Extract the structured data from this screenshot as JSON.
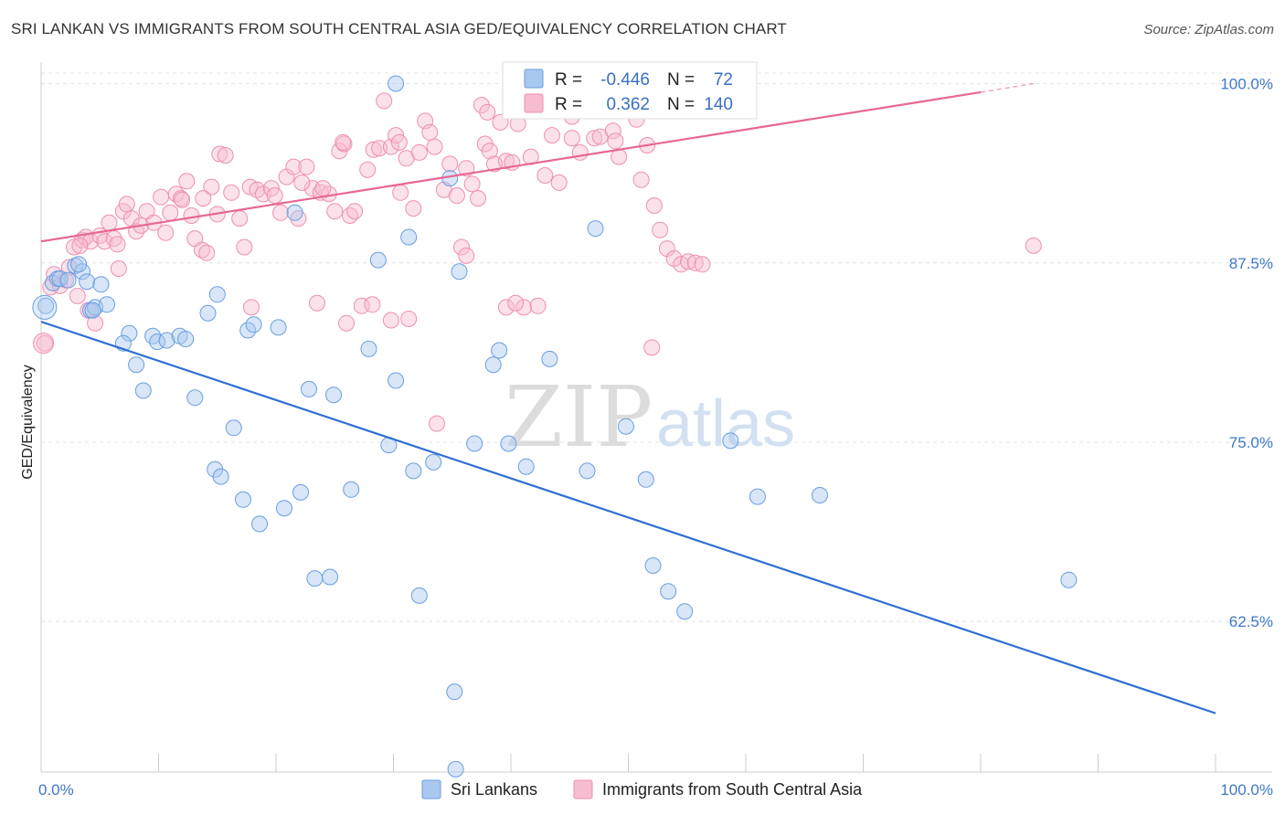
{
  "title": "SRI LANKAN VS IMMIGRANTS FROM SOUTH CENTRAL ASIA GED/EQUIVALENCY CORRELATION CHART",
  "source": "Source: ZipAtlas.com",
  "watermark": {
    "zip": "ZIP",
    "atlas": "atlas"
  },
  "legend_top": {
    "r_label": "R =",
    "n_label": "N =",
    "rows": [
      {
        "r": "-0.446",
        "n": "72",
        "color": "#a9c8ef"
      },
      {
        "r": "0.362",
        "n": "140",
        "color": "#f6bcd0"
      }
    ]
  },
  "chart_data": {
    "type": "scatter",
    "ylabel": "GED/Equivalency",
    "xlim": [
      0,
      100
    ],
    "ylim": [
      52,
      101.5
    ],
    "x_ticks": [
      "0.0%",
      "100.0%"
    ],
    "y_ticks": [
      {
        "value": 100,
        "label": "100.0%"
      },
      {
        "value": 87.5,
        "label": "87.5%"
      },
      {
        "value": 75,
        "label": "75.0%"
      },
      {
        "value": 62.5,
        "label": "62.5%"
      }
    ],
    "grid": true,
    "series": [
      {
        "name": "Sri Lankans",
        "color": "#a9c8ef",
        "stroke": "#6a9ee0",
        "line_color": "#2f6fd0",
        "trend": {
          "x0": 0,
          "y0": 83.4,
          "x1": 100,
          "y1": 56.1
        },
        "points": [
          [
            0.4,
            84.5
          ],
          [
            1.0,
            86.1
          ],
          [
            1.4,
            86.4
          ],
          [
            1.6,
            86.4
          ],
          [
            2.3,
            86.3
          ],
          [
            2.9,
            87.3
          ],
          [
            3.5,
            86.9
          ],
          [
            3.9,
            86.2
          ],
          [
            5.1,
            86.0
          ],
          [
            4.2,
            84.2
          ],
          [
            4.6,
            84.4
          ],
          [
            4.4,
            84.2
          ],
          [
            5.6,
            84.6
          ],
          [
            7.5,
            82.6
          ],
          [
            8.1,
            80.4
          ],
          [
            8.7,
            78.6
          ],
          [
            9.5,
            82.4
          ],
          [
            9.9,
            82.0
          ],
          [
            10.7,
            82.1
          ],
          [
            11.8,
            82.4
          ],
          [
            12.3,
            82.2
          ],
          [
            13.1,
            78.1
          ],
          [
            14.2,
            84.0
          ],
          [
            14.8,
            73.1
          ],
          [
            15.3,
            72.6
          ],
          [
            16.4,
            76.0
          ],
          [
            17.6,
            82.8
          ],
          [
            18.1,
            83.2
          ],
          [
            18.6,
            69.3
          ],
          [
            17.2,
            71.0
          ],
          [
            20.2,
            83.0
          ],
          [
            20.7,
            70.4
          ],
          [
            22.1,
            71.5
          ],
          [
            21.6,
            91.0
          ],
          [
            22.8,
            78.7
          ],
          [
            23.3,
            65.5
          ],
          [
            24.6,
            65.6
          ],
          [
            24.9,
            78.3
          ],
          [
            26.4,
            71.7
          ],
          [
            27.9,
            81.5
          ],
          [
            28.7,
            87.7
          ],
          [
            29.6,
            74.8
          ],
          [
            30.2,
            79.3
          ],
          [
            31.3,
            89.3
          ],
          [
            31.7,
            73.0
          ],
          [
            32.2,
            64.3
          ],
          [
            33.4,
            73.6
          ],
          [
            34.8,
            93.4
          ],
          [
            35.6,
            86.9
          ],
          [
            35.2,
            57.6
          ],
          [
            35.3,
            52.2
          ],
          [
            36.9,
            74.9
          ],
          [
            38.5,
            80.4
          ],
          [
            39.0,
            81.4
          ],
          [
            39.8,
            74.9
          ],
          [
            41.3,
            73.3
          ],
          [
            43.3,
            80.8
          ],
          [
            46.5,
            73.0
          ],
          [
            47.2,
            89.9
          ],
          [
            49.8,
            76.1
          ],
          [
            51.5,
            72.4
          ],
          [
            52.1,
            66.4
          ],
          [
            53.4,
            64.6
          ],
          [
            54.8,
            63.2
          ],
          [
            58.7,
            75.1
          ],
          [
            61.0,
            71.2
          ],
          [
            66.3,
            71.3
          ],
          [
            30.2,
            100.0
          ],
          [
            7.0,
            81.9
          ],
          [
            15.0,
            85.3
          ],
          [
            3.2,
            87.4
          ],
          [
            87.5,
            65.4
          ]
        ]
      },
      {
        "name": "Immigrants from South Central Asia",
        "color": "#f6bcd0",
        "stroke": "#ee8fb2",
        "line_color": "#e76793",
        "trend": {
          "x0": 0,
          "y0": 89.0,
          "x1": 80,
          "y1": 99.4
        },
        "trend_dash": {
          "x0": 80,
          "y0": 99.4,
          "x1": 84.5,
          "y1": 100.0
        },
        "points": [
          [
            0.3,
            81.9
          ],
          [
            0.8,
            85.8
          ],
          [
            1.1,
            86.7
          ],
          [
            1.6,
            85.9
          ],
          [
            2.1,
            86.3
          ],
          [
            2.4,
            87.2
          ],
          [
            2.8,
            88.6
          ],
          [
            3.1,
            85.2
          ],
          [
            3.5,
            89.1
          ],
          [
            3.8,
            89.3
          ],
          [
            4.2,
            89.0
          ],
          [
            4.6,
            83.3
          ],
          [
            5.0,
            89.4
          ],
          [
            5.4,
            89.0
          ],
          [
            5.8,
            90.3
          ],
          [
            6.2,
            89.2
          ],
          [
            6.6,
            87.1
          ],
          [
            7.0,
            91.1
          ],
          [
            7.3,
            91.6
          ],
          [
            7.7,
            90.6
          ],
          [
            8.1,
            89.7
          ],
          [
            8.5,
            90.1
          ],
          [
            9.0,
            91.1
          ],
          [
            9.6,
            90.3
          ],
          [
            10.2,
            92.1
          ],
          [
            10.6,
            89.6
          ],
          [
            11.0,
            91.0
          ],
          [
            11.5,
            92.3
          ],
          [
            11.9,
            92.0
          ],
          [
            12.4,
            93.2
          ],
          [
            12.8,
            90.8
          ],
          [
            13.1,
            89.2
          ],
          [
            13.7,
            88.4
          ],
          [
            14.1,
            88.2
          ],
          [
            14.5,
            92.8
          ],
          [
            15.0,
            90.9
          ],
          [
            15.2,
            95.1
          ],
          [
            15.7,
            95.0
          ],
          [
            16.2,
            92.4
          ],
          [
            16.9,
            90.6
          ],
          [
            17.3,
            88.6
          ],
          [
            17.8,
            92.8
          ],
          [
            18.4,
            92.6
          ],
          [
            18.9,
            92.3
          ],
          [
            19.6,
            92.7
          ],
          [
            19.9,
            92.2
          ],
          [
            20.4,
            91.0
          ],
          [
            20.9,
            93.5
          ],
          [
            21.5,
            94.2
          ],
          [
            21.9,
            90.6
          ],
          [
            22.6,
            94.2
          ],
          [
            23.1,
            92.7
          ],
          [
            23.5,
            84.7
          ],
          [
            23.8,
            92.4
          ],
          [
            24.5,
            92.3
          ],
          [
            25.0,
            91.1
          ],
          [
            25.4,
            95.3
          ],
          [
            25.8,
            95.8
          ],
          [
            26.3,
            90.8
          ],
          [
            26.7,
            91.1
          ],
          [
            27.3,
            84.5
          ],
          [
            27.8,
            94.0
          ],
          [
            28.3,
            95.4
          ],
          [
            28.8,
            95.5
          ],
          [
            29.2,
            98.8
          ],
          [
            29.8,
            95.6
          ],
          [
            30.2,
            96.4
          ],
          [
            30.6,
            92.4
          ],
          [
            31.1,
            94.8
          ],
          [
            31.7,
            91.3
          ],
          [
            32.2,
            95.2
          ],
          [
            32.7,
            97.4
          ],
          [
            33.1,
            96.6
          ],
          [
            33.5,
            95.6
          ],
          [
            34.3,
            92.6
          ],
          [
            34.8,
            94.4
          ],
          [
            35.4,
            92.2
          ],
          [
            35.8,
            88.6
          ],
          [
            36.2,
            94.1
          ],
          [
            36.7,
            93.0
          ],
          [
            37.2,
            92.0
          ],
          [
            37.5,
            98.5
          ],
          [
            37.8,
            95.8
          ],
          [
            38.2,
            95.3
          ],
          [
            38.6,
            94.4
          ],
          [
            39.1,
            97.3
          ],
          [
            39.6,
            94.6
          ],
          [
            40.1,
            94.5
          ],
          [
            40.6,
            97.2
          ],
          [
            41.1,
            84.4
          ],
          [
            41.7,
            94.9
          ],
          [
            42.3,
            84.5
          ],
          [
            42.9,
            93.6
          ],
          [
            43.5,
            96.4
          ],
          [
            44.1,
            93.1
          ],
          [
            44.7,
            99.0
          ],
          [
            45.2,
            97.7
          ],
          [
            45.9,
            95.2
          ],
          [
            46.5,
            98.6
          ],
          [
            47.1,
            96.2
          ],
          [
            47.6,
            96.3
          ],
          [
            48.2,
            98.1
          ],
          [
            48.7,
            96.7
          ],
          [
            49.2,
            99.4
          ],
          [
            49.8,
            98.4
          ],
          [
            50.2,
            98.4
          ],
          [
            50.7,
            97.5
          ],
          [
            51.1,
            93.3
          ],
          [
            51.6,
            95.7
          ],
          [
            52.2,
            91.5
          ],
          [
            52.7,
            89.8
          ],
          [
            53.3,
            88.5
          ],
          [
            53.9,
            87.8
          ],
          [
            54.5,
            87.4
          ],
          [
            55.1,
            87.6
          ],
          [
            55.7,
            87.5
          ],
          [
            56.3,
            87.4
          ],
          [
            17.9,
            84.4
          ],
          [
            26.0,
            83.3
          ],
          [
            28.2,
            84.6
          ],
          [
            29.8,
            83.5
          ],
          [
            31.3,
            83.6
          ],
          [
            33.7,
            76.3
          ],
          [
            39.6,
            84.4
          ],
          [
            40.4,
            84.7
          ],
          [
            52.0,
            81.6
          ],
          [
            84.5,
            88.7
          ],
          [
            3.3,
            88.7
          ],
          [
            6.5,
            88.8
          ],
          [
            13.8,
            92.0
          ],
          [
            22.2,
            93.1
          ],
          [
            24.0,
            92.7
          ],
          [
            30.5,
            95.9
          ],
          [
            38.0,
            98.0
          ],
          [
            42.0,
            100.0
          ],
          [
            45.2,
            96.2
          ],
          [
            48.9,
            96.0
          ],
          [
            49.2,
            94.9
          ],
          [
            12.0,
            91.9
          ],
          [
            4.0,
            84.2
          ],
          [
            36.2,
            88.0
          ],
          [
            25.7,
            95.9
          ]
        ]
      }
    ]
  },
  "legend_bottom": [
    {
      "label": "Sri Lankans",
      "color": "#a9c8ef"
    },
    {
      "label": "Immigrants from South Central Asia",
      "color": "#f6bcd0"
    }
  ]
}
